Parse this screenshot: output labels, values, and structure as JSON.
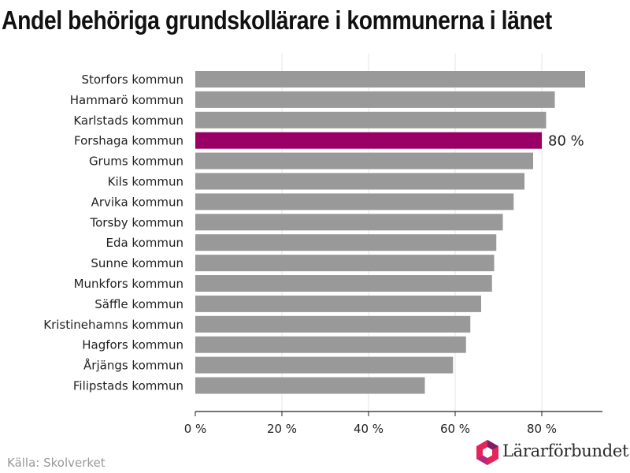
{
  "chart_data": {
    "type": "bar",
    "orientation": "horizontal",
    "title": "Andel behöriga grundskollärare i kommunerna i länet",
    "categories": [
      "Storfors kommun",
      "Hammarö kommun",
      "Karlstads kommun",
      "Forshaga kommun",
      "Grums kommun",
      "Kils kommun",
      "Arvika kommun",
      "Torsby kommun",
      "Eda kommun",
      "Sunne kommun",
      "Munkfors kommun",
      "Säffle kommun",
      "Kristinehamns kommun",
      "Hagfors kommun",
      "Årjängs kommun",
      "Filipstads kommun"
    ],
    "values": [
      90,
      83,
      81,
      80,
      78,
      76,
      73.5,
      71,
      69.5,
      69,
      68.5,
      66,
      63.5,
      62.5,
      59.5,
      53
    ],
    "xlim": [
      0,
      94
    ],
    "xticks": [
      0,
      20,
      40,
      60,
      80
    ],
    "xtick_labels": [
      "0 %",
      "20 %",
      "40 %",
      "60 %",
      "80 %"
    ],
    "grid": true,
    "highlight": {
      "category": "Forshaga kommun",
      "label": "80 %"
    },
    "colors": {
      "bar": "#999999",
      "highlight": "#990066",
      "grid": "#e6e6e6",
      "axis": "#222222"
    }
  },
  "source": "Källa: Skolverket",
  "brand": {
    "name": "Lärarförbundet",
    "logo_colors": [
      "#e6245c",
      "#7a1f66",
      "#b8287a"
    ]
  }
}
